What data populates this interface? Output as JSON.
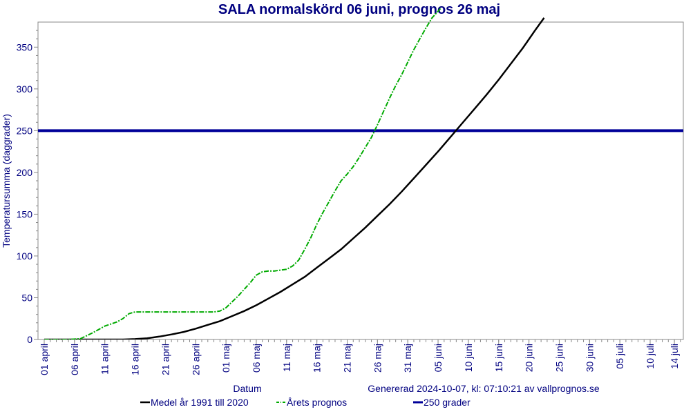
{
  "chart_data": {
    "type": "line",
    "title": "SALA normalskörd 06 juni, prognos 26 maj",
    "xlabel": "Datum",
    "ylabel": "Temperatursumma (daggrader)",
    "footer": "Genererad 2024-10-07, kl: 07:10:21 av vallprognos.se",
    "ylim": [
      0,
      380
    ],
    "yticks": [
      0,
      50,
      100,
      150,
      200,
      250,
      300,
      350
    ],
    "xlim": [
      0,
      105
    ],
    "xticks": [
      {
        "pos": 0,
        "label": "01 april"
      },
      {
        "pos": 5,
        "label": "06 april"
      },
      {
        "pos": 10,
        "label": "11 april"
      },
      {
        "pos": 15,
        "label": "16 april"
      },
      {
        "pos": 20,
        "label": "21 april"
      },
      {
        "pos": 25,
        "label": "26 april"
      },
      {
        "pos": 30,
        "label": "01 maj"
      },
      {
        "pos": 35,
        "label": "06 maj"
      },
      {
        "pos": 40,
        "label": "11 maj"
      },
      {
        "pos": 45,
        "label": "16 maj"
      },
      {
        "pos": 50,
        "label": "21 maj"
      },
      {
        "pos": 55,
        "label": "26 maj"
      },
      {
        "pos": 60,
        "label": "31 maj"
      },
      {
        "pos": 65,
        "label": "05 juni"
      },
      {
        "pos": 70,
        "label": "10 juni"
      },
      {
        "pos": 75,
        "label": "15 juni"
      },
      {
        "pos": 80,
        "label": "20 juni"
      },
      {
        "pos": 85,
        "label": "25 juni"
      },
      {
        "pos": 90,
        "label": "30 juni"
      },
      {
        "pos": 95,
        "label": "05 juli"
      },
      {
        "pos": 100,
        "label": "10 juli"
      },
      {
        "pos": 104,
        "label": "14 juli"
      }
    ],
    "grid": false,
    "legend_position": "bottom",
    "series": [
      {
        "name": "Medel år 1991 till 2020",
        "color": "#000000",
        "style": "solid",
        "x": [
          0,
          5,
          10,
          13,
          15,
          17,
          19,
          21,
          23,
          25,
          27,
          29,
          31,
          33,
          35,
          37,
          39,
          41,
          43,
          45,
          47,
          49,
          51,
          53,
          55,
          57,
          59,
          61,
          63,
          65,
          67,
          69,
          71,
          73,
          75,
          77,
          79,
          81,
          82.5
        ],
        "y": [
          0,
          0,
          0,
          0,
          0.5,
          1.5,
          3.5,
          6,
          9,
          13,
          17.5,
          22,
          28,
          34,
          41,
          49,
          57,
          66,
          75,
          86,
          97,
          108,
          121,
          134,
          148,
          162,
          177,
          193,
          209,
          225,
          242,
          259,
          276,
          293,
          311,
          330,
          349,
          370,
          385
        ]
      },
      {
        "name": "Årets prognos",
        "color": "#00aa00",
        "style": "dashed",
        "x": [
          0,
          4,
          6,
          8,
          10,
          12,
          13,
          14,
          15,
          16,
          18,
          20,
          22,
          24,
          26,
          28,
          29,
          30,
          31,
          32,
          33,
          34,
          35,
          36,
          37,
          38,
          39,
          40,
          41,
          42,
          43,
          44,
          45,
          46,
          47,
          48,
          49,
          50,
          51,
          52,
          53,
          54,
          55,
          56,
          57,
          58,
          59,
          60,
          61,
          62,
          63,
          64,
          65,
          65.5
        ],
        "y": [
          0,
          0,
          1,
          8,
          16,
          21,
          25,
          31,
          33,
          33,
          33,
          33,
          33,
          33,
          33,
          33,
          34,
          38,
          45,
          52,
          60,
          68,
          77,
          81,
          82,
          82,
          83,
          84,
          88,
          95,
          108,
          122,
          138,
          152,
          165,
          178,
          190,
          198,
          207,
          218,
          230,
          242,
          257,
          273,
          289,
          304,
          317,
          332,
          347,
          360,
          373,
          385,
          393,
          397
        ]
      },
      {
        "name": "250 grader",
        "color": "#000099",
        "style": "solid-thick",
        "x": [
          0,
          105
        ],
        "y": [
          250,
          250
        ]
      }
    ]
  }
}
